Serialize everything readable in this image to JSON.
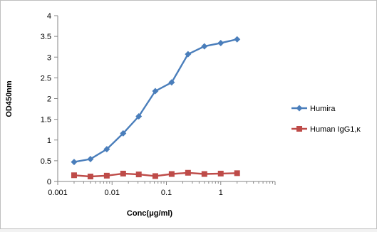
{
  "chart_data": {
    "type": "line",
    "title": "",
    "xlabel": "Conc(μg/ml)",
    "ylabel": "OD450nm",
    "x_scale": "log",
    "xlim": [
      0.001,
      10
    ],
    "ylim": [
      0,
      4
    ],
    "x_ticks": [
      {
        "value": 0.001,
        "label": "0.001"
      },
      {
        "value": 0.01,
        "label": "0.01"
      },
      {
        "value": 0.1,
        "label": "0.1"
      },
      {
        "value": 1,
        "label": "1"
      }
    ],
    "y_ticks": [
      {
        "value": 0,
        "label": "0"
      },
      {
        "value": 0.5,
        "label": "0.5"
      },
      {
        "value": 1,
        "label": "1"
      },
      {
        "value": 1.5,
        "label": "1.5"
      },
      {
        "value": 2,
        "label": "2"
      },
      {
        "value": 2.5,
        "label": "2.5"
      },
      {
        "value": 3,
        "label": "3"
      },
      {
        "value": 3.5,
        "label": "3.5"
      },
      {
        "value": 4,
        "label": "4"
      }
    ],
    "grid": false,
    "legend_position": "right",
    "x": [
      0.002,
      0.004,
      0.008,
      0.016,
      0.031,
      0.0625,
      0.125,
      0.25,
      0.5,
      1,
      2
    ],
    "series": [
      {
        "name": "Humira",
        "color": "#4a7ebb",
        "marker": "diamond",
        "values": [
          0.47,
          0.54,
          0.78,
          1.16,
          1.57,
          2.18,
          2.39,
          3.07,
          3.26,
          3.34,
          3.43
        ]
      },
      {
        "name": "Human IgG1,κ",
        "color": "#be4b48",
        "marker": "square",
        "values": [
          0.15,
          0.12,
          0.14,
          0.19,
          0.17,
          0.13,
          0.18,
          0.21,
          0.18,
          0.19,
          0.2
        ]
      }
    ]
  }
}
